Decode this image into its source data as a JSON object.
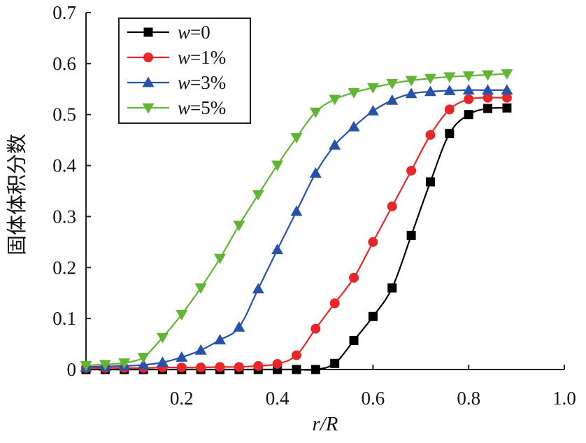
{
  "chart_data": {
    "type": "line",
    "xlabel": "r/R",
    "ylabel": "固体体积分数",
    "xlim": [
      0,
      1.0
    ],
    "ylim": [
      0,
      0.7
    ],
    "x_ticks": [
      "0.2",
      "0.4",
      "0.6",
      "0.8",
      "1.0"
    ],
    "y_ticks": [
      "0",
      "0.1",
      "0.2",
      "0.3",
      "0.4",
      "0.5",
      "0.6",
      "0.7"
    ],
    "legend_position": "top-left",
    "series": [
      {
        "name": "w=0",
        "color": "#000000",
        "marker": "square",
        "x": [
          0.0,
          0.04,
          0.08,
          0.12,
          0.16,
          0.2,
          0.24,
          0.28,
          0.32,
          0.36,
          0.4,
          0.44,
          0.48,
          0.52,
          0.56,
          0.6,
          0.64,
          0.68,
          0.72,
          0.76,
          0.8,
          0.84,
          0.88
        ],
        "y": [
          0.0,
          0.0,
          0.0,
          0.0,
          0.0,
          0.0,
          0.0,
          0.0,
          0.0,
          0.0,
          0.0,
          0.0,
          0.0,
          0.012,
          0.057,
          0.104,
          0.16,
          0.263,
          0.368,
          0.463,
          0.5,
          0.512,
          0.513
        ]
      },
      {
        "name": "w=1%",
        "color": "#e8262a",
        "marker": "circle",
        "x": [
          0.0,
          0.04,
          0.08,
          0.12,
          0.16,
          0.2,
          0.24,
          0.28,
          0.32,
          0.36,
          0.4,
          0.44,
          0.48,
          0.52,
          0.56,
          0.6,
          0.64,
          0.68,
          0.72,
          0.76,
          0.8,
          0.84,
          0.88
        ],
        "y": [
          0.003,
          0.003,
          0.003,
          0.003,
          0.004,
          0.004,
          0.004,
          0.005,
          0.005,
          0.007,
          0.011,
          0.028,
          0.08,
          0.13,
          0.18,
          0.25,
          0.32,
          0.39,
          0.46,
          0.51,
          0.53,
          0.533,
          0.533
        ]
      },
      {
        "name": "w=3%",
        "color": "#2653a9",
        "marker": "triangle-up",
        "x": [
          0.0,
          0.04,
          0.08,
          0.12,
          0.16,
          0.2,
          0.24,
          0.28,
          0.32,
          0.36,
          0.4,
          0.44,
          0.48,
          0.52,
          0.56,
          0.6,
          0.64,
          0.68,
          0.72,
          0.76,
          0.8,
          0.84,
          0.88
        ],
        "y": [
          0.005,
          0.006,
          0.007,
          0.009,
          0.014,
          0.024,
          0.038,
          0.058,
          0.083,
          0.158,
          0.235,
          0.31,
          0.385,
          0.44,
          0.476,
          0.507,
          0.528,
          0.541,
          0.545,
          0.547,
          0.548,
          0.548,
          0.548
        ]
      },
      {
        "name": "w=5%",
        "color": "#62b534",
        "marker": "triangle-down",
        "x": [
          0.0,
          0.04,
          0.08,
          0.12,
          0.16,
          0.2,
          0.24,
          0.28,
          0.32,
          0.36,
          0.4,
          0.44,
          0.48,
          0.52,
          0.56,
          0.6,
          0.64,
          0.68,
          0.72,
          0.76,
          0.8,
          0.84,
          0.88
        ],
        "y": [
          0.008,
          0.01,
          0.013,
          0.024,
          0.063,
          0.108,
          0.16,
          0.218,
          0.283,
          0.343,
          0.401,
          0.455,
          0.505,
          0.53,
          0.543,
          0.553,
          0.561,
          0.567,
          0.571,
          0.574,
          0.576,
          0.578,
          0.58
        ]
      }
    ]
  }
}
